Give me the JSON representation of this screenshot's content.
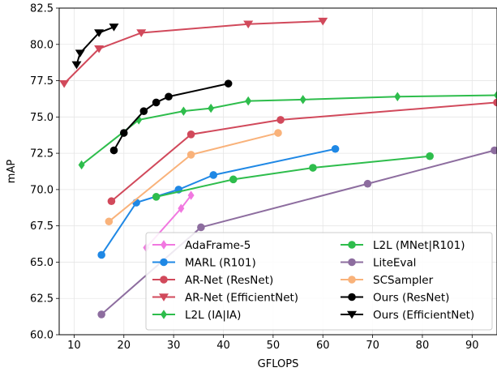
{
  "chart_data": {
    "type": "line",
    "title": "",
    "xlabel": "GFLOPS",
    "ylabel": "mAP",
    "xlim": [
      7,
      95
    ],
    "ylim": [
      60,
      82.5
    ],
    "xticks": [
      10,
      20,
      30,
      40,
      50,
      60,
      70,
      80,
      90
    ],
    "yticks": [
      60.0,
      62.5,
      65.0,
      67.5,
      70.0,
      72.5,
      75.0,
      77.5,
      80.0,
      82.5
    ],
    "x_tick_labels": [
      "10",
      "20",
      "30",
      "40",
      "50",
      "60",
      "70",
      "80",
      "90"
    ],
    "y_tick_labels": [
      "60.0",
      "62.5",
      "65.0",
      "67.5",
      "70.0",
      "72.5",
      "75.0",
      "77.5",
      "80.0",
      "82.5"
    ],
    "grid": true,
    "legend_position": "bottom-right",
    "legend_columns": 2,
    "series": [
      {
        "name": "AdaFrame-5",
        "color": "#f178e0",
        "marker": "diamond",
        "x": [
          24.5,
          31.5,
          33.5
        ],
        "y": [
          66.0,
          68.7,
          69.6
        ]
      },
      {
        "name": "MARL (R101)",
        "color": "#1f88e5",
        "marker": "circle",
        "x": [
          15.5,
          22.5,
          31.0,
          38.0,
          62.5
        ],
        "y": [
          65.5,
          69.1,
          70.0,
          71.0,
          72.8
        ]
      },
      {
        "name": "AR-Net (ResNet)",
        "color": "#d1495b",
        "marker": "circle",
        "x": [
          17.5,
          33.5,
          51.5,
          95.0
        ],
        "y": [
          69.2,
          73.8,
          74.8,
          76.0
        ]
      },
      {
        "name": "AR-Net (EfficientNet)",
        "color": "#d1495b",
        "marker": "triangle-down",
        "x": [
          8.0,
          15.0,
          23.5,
          45.0,
          60.0
        ],
        "y": [
          77.3,
          79.7,
          80.8,
          81.4,
          81.6
        ]
      },
      {
        "name": "L2L (IA|IA)",
        "color": "#2ebd4c",
        "marker": "diamond",
        "x": [
          11.5,
          23.0,
          32.0,
          37.5,
          45.0,
          56.0,
          75.0,
          95.0
        ],
        "y": [
          71.7,
          74.8,
          75.4,
          75.6,
          76.1,
          76.2,
          76.4,
          76.5
        ]
      },
      {
        "name": "L2L (MNet|R101)",
        "color": "#2ebd4c",
        "marker": "circle",
        "x": [
          26.5,
          42.0,
          58.0,
          81.5
        ],
        "y": [
          69.5,
          70.7,
          71.5,
          72.3
        ]
      },
      {
        "name": "LiteEval",
        "color": "#8d6d9f",
        "marker": "circle",
        "x": [
          15.5,
          35.5,
          69.0,
          94.5
        ],
        "y": [
          61.4,
          67.4,
          70.4,
          72.7
        ]
      },
      {
        "name": "SCSampler",
        "color": "#f9b27a",
        "marker": "circle",
        "x": [
          17.0,
          33.5,
          51.0
        ],
        "y": [
          67.8,
          72.4,
          73.9
        ]
      },
      {
        "name": "Ours (ResNet)",
        "color": "#000000",
        "marker": "circle",
        "x": [
          18.0,
          20.0,
          24.0,
          26.5,
          29.0,
          41.0
        ],
        "y": [
          72.7,
          73.9,
          75.4,
          76.0,
          76.4,
          77.3
        ]
      },
      {
        "name": "Ours (EfficientNet)",
        "color": "#000000",
        "marker": "triangle-down",
        "x": [
          10.5,
          11.2,
          15.0,
          18.0
        ],
        "y": [
          78.6,
          79.4,
          80.8,
          81.2
        ]
      }
    ]
  }
}
